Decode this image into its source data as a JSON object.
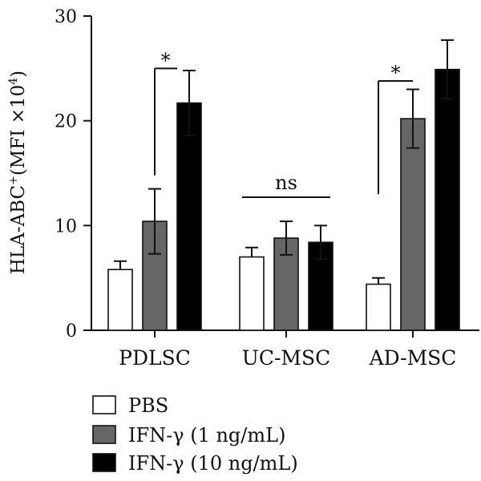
{
  "chart_data": {
    "type": "bar",
    "ylabel_main": "HLA-ABC",
    "ylabel_sup": "+",
    "ylabel_mid": "(MFI ×10",
    "ylabel_exp": "4",
    "ylabel_end": ")",
    "ylim": [
      0,
      30
    ],
    "yticks": [
      "0",
      "10",
      "20",
      "30"
    ],
    "categories": [
      "PDLSC",
      "UC-MSC",
      "AD-MSC"
    ],
    "series": [
      {
        "name": "PBS",
        "color": "#ffffff",
        "values": [
          5.8,
          7.0,
          4.4
        ],
        "errors": [
          0.8,
          0.9,
          0.6
        ]
      },
      {
        "name": "IFN-γ (1 ng/mL)",
        "color": "#666666",
        "values": [
          10.4,
          8.8,
          20.2
        ],
        "errors": [
          3.1,
          1.6,
          2.8
        ]
      },
      {
        "name": "IFN-γ (10 ng/mL)",
        "color": "#000000",
        "values": [
          21.7,
          8.4,
          24.9
        ],
        "errors": [
          3.1,
          1.6,
          2.8
        ]
      }
    ],
    "annotations": [
      {
        "text": "*",
        "group": 0,
        "from": 1,
        "to": 2,
        "y": 25.0
      },
      {
        "text": "ns",
        "group": 1,
        "from": 0,
        "to": 2,
        "y": 12.7
      },
      {
        "text": "*",
        "group": 2,
        "from": 0,
        "to": 1,
        "y": 23.8
      }
    ]
  }
}
